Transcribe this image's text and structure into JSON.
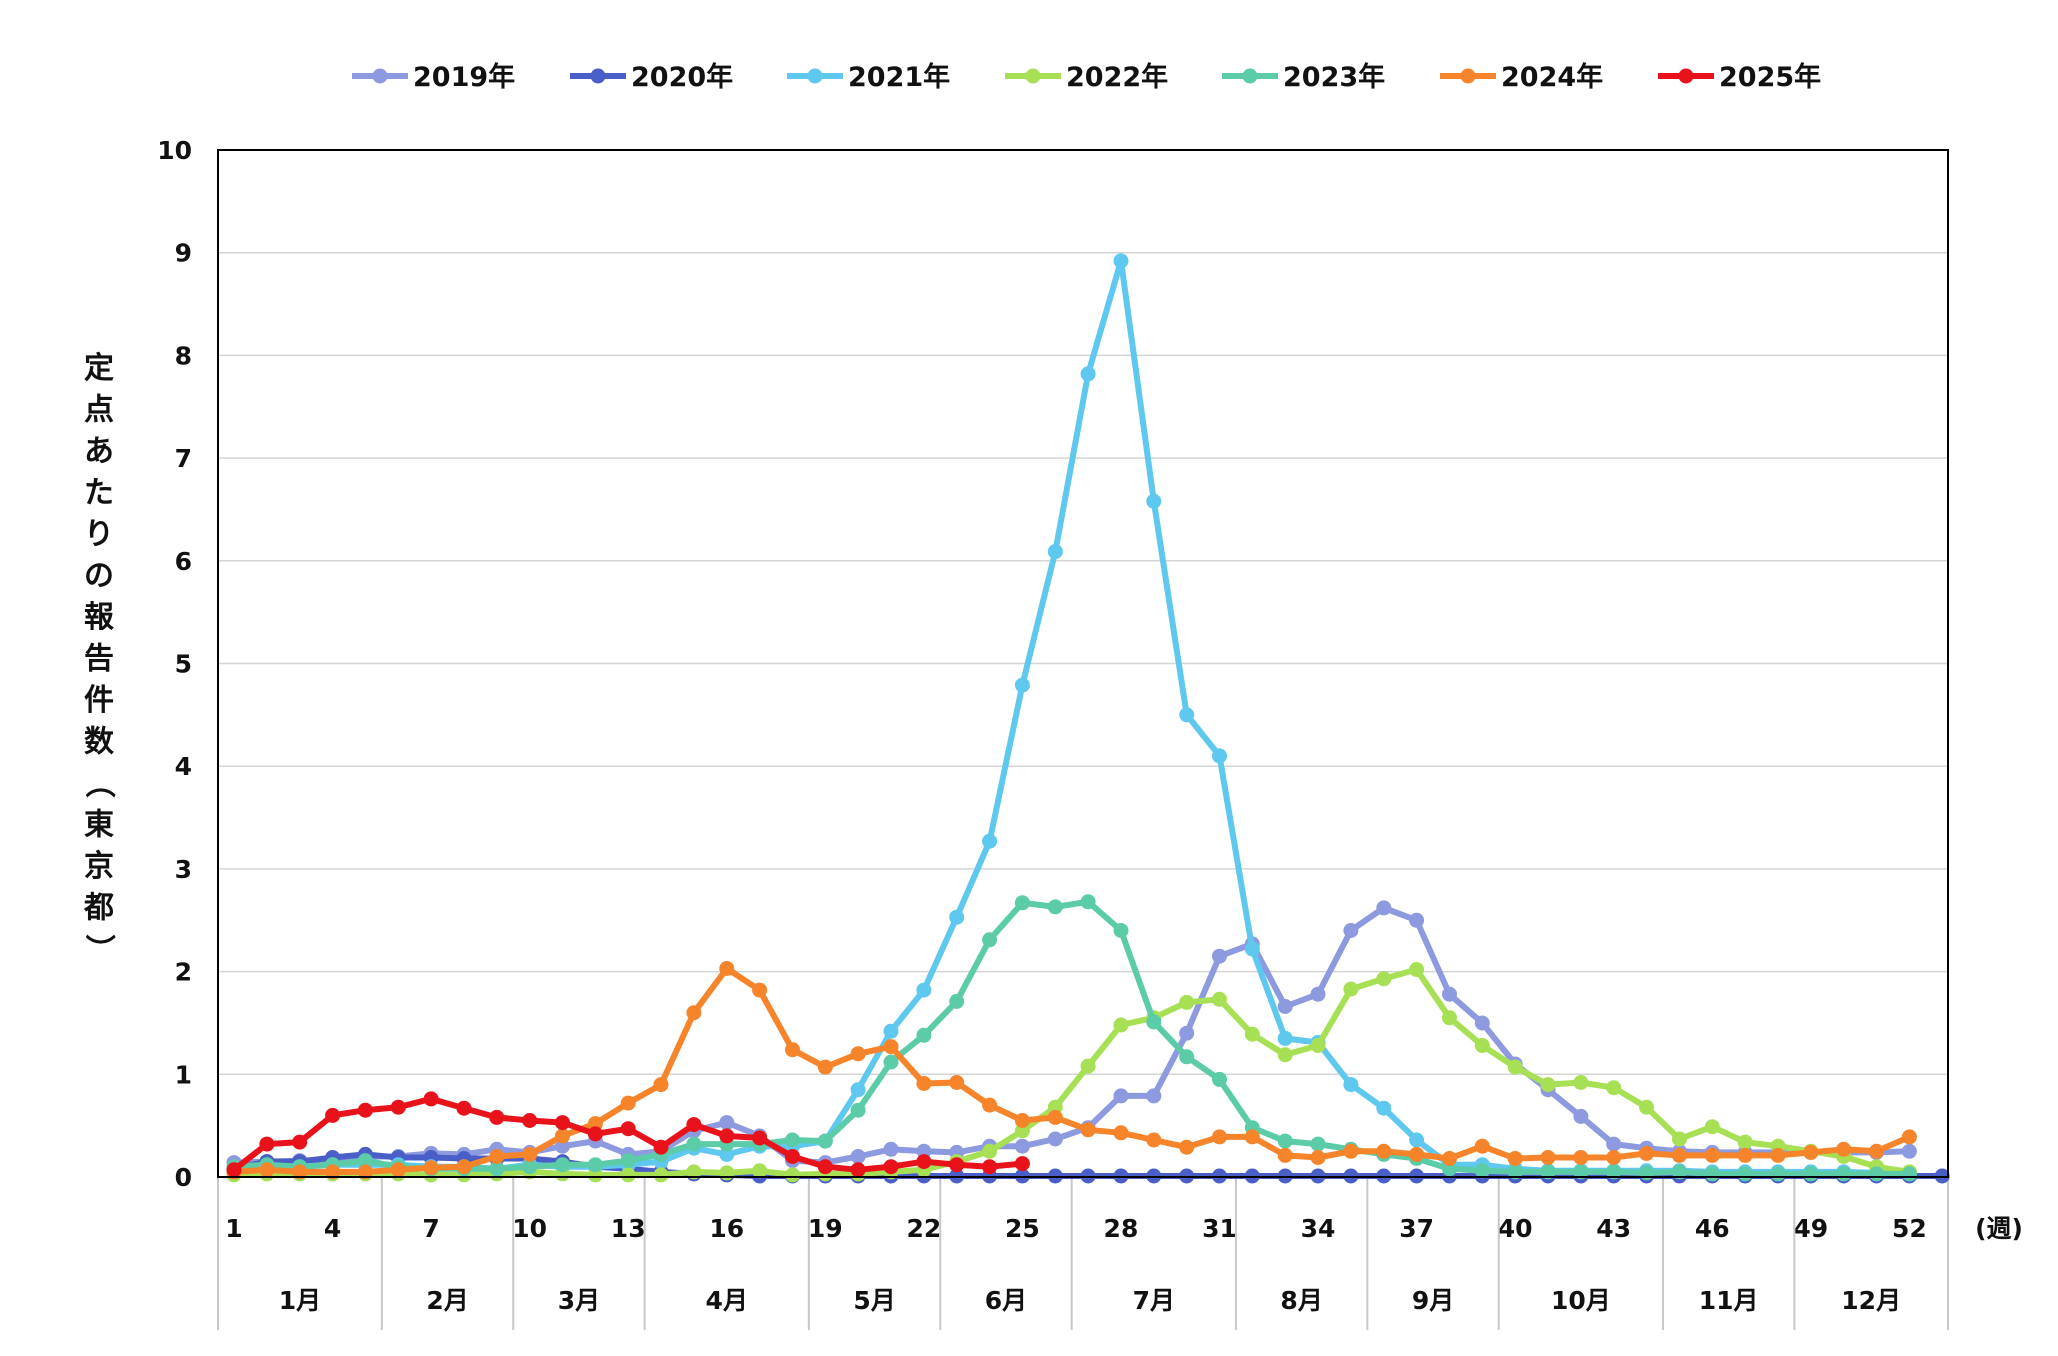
{
  "chart_data": {
    "type": "line",
    "title": "",
    "ylabel_chars": [
      "定",
      "点",
      "あ",
      "た",
      "り",
      "の",
      "報",
      "告",
      "件",
      "数",
      "（",
      "東",
      "京",
      "都",
      "）"
    ],
    "ylabel": "定点あたりの報告件数（東京都）",
    "xunit": "(週)",
    "ylim": [
      0,
      10
    ],
    "yticks": [
      0,
      1,
      2,
      3,
      4,
      5,
      6,
      7,
      8,
      9,
      10
    ],
    "xlim": [
      1,
      53
    ],
    "xticks": [
      1,
      4,
      7,
      10,
      13,
      16,
      19,
      22,
      25,
      28,
      31,
      34,
      37,
      40,
      43,
      46,
      49,
      52
    ],
    "grid": "horizontal",
    "legend": "top",
    "months": [
      {
        "label": "1月",
        "start": 0.5,
        "end": 5.5
      },
      {
        "label": "2月",
        "start": 5.5,
        "end": 9.5
      },
      {
        "label": "3月",
        "start": 9.5,
        "end": 13.5
      },
      {
        "label": "4月",
        "start": 13.5,
        "end": 18.5
      },
      {
        "label": "5月",
        "start": 18.5,
        "end": 22.5
      },
      {
        "label": "6月",
        "start": 22.5,
        "end": 26.5
      },
      {
        "label": "7月",
        "start": 26.5,
        "end": 31.5
      },
      {
        "label": "8月",
        "start": 31.5,
        "end": 35.5
      },
      {
        "label": "9月",
        "start": 35.5,
        "end": 39.5
      },
      {
        "label": "10月",
        "start": 39.5,
        "end": 44.5
      },
      {
        "label": "11月",
        "start": 44.5,
        "end": 48.5
      },
      {
        "label": "12月",
        "start": 48.5,
        "end": 53.5
      }
    ],
    "series": [
      {
        "name": "2019年",
        "color": "#8e9ae0",
        "x_start": 1,
        "values": [
          0.14,
          0.15,
          0.16,
          0.17,
          0.2,
          0.2,
          0.23,
          0.22,
          0.27,
          0.24,
          0.3,
          0.35,
          0.22,
          0.25,
          0.45,
          0.53,
          0.4,
          0.16,
          0.14,
          0.2,
          0.27,
          0.25,
          0.24,
          0.3,
          0.3,
          0.37,
          0.48,
          0.79,
          0.79,
          1.4,
          2.15,
          2.27,
          1.66,
          1.78,
          2.4,
          2.62,
          2.5,
          1.78,
          1.5,
          1.1,
          0.85,
          0.59,
          0.32,
          0.28,
          0.25,
          0.24,
          0.24,
          0.24,
          0.24,
          0.24,
          0.24,
          0.25
        ]
      },
      {
        "name": "2020年",
        "color": "#4a5ec8",
        "x_start": 1,
        "values": [
          0.08,
          0.15,
          0.15,
          0.19,
          0.22,
          0.19,
          0.19,
          0.18,
          0.18,
          0.18,
          0.15,
          0.1,
          0.08,
          0.05,
          0.03,
          0.02,
          0.01,
          0.01,
          0.01,
          0.01,
          0.01,
          0.01,
          0.01,
          0.01,
          0.01,
          0.01,
          0.01,
          0.01,
          0.01,
          0.01,
          0.01,
          0.01,
          0.01,
          0.01,
          0.01,
          0.01,
          0.01,
          0.01,
          0.01,
          0.01,
          0.01,
          0.01,
          0.01,
          0.01,
          0.01,
          0.01,
          0.01,
          0.01,
          0.01,
          0.01,
          0.01,
          0.01,
          0.01
        ]
      },
      {
        "name": "2021年",
        "color": "#5ec8ef",
        "x_start": 1,
        "values": [
          0.05,
          0.08,
          0.1,
          0.12,
          0.12,
          0.12,
          0.1,
          0.1,
          0.08,
          0.12,
          0.1,
          0.1,
          0.12,
          0.15,
          0.28,
          0.22,
          0.3,
          0.3,
          0.35,
          0.85,
          1.42,
          1.82,
          2.53,
          3.27,
          4.79,
          6.09,
          7.82,
          8.92,
          6.58,
          4.5,
          4.1,
          2.22,
          1.35,
          1.31,
          0.9,
          0.67,
          0.36,
          0.12,
          0.12,
          0.08,
          0.06,
          0.06,
          0.06,
          0.06,
          0.06,
          0.05,
          0.05,
          0.05,
          0.05,
          0.05,
          0.04,
          0.03
        ]
      },
      {
        "name": "2022年",
        "color": "#a8e055",
        "x_start": 1,
        "values": [
          0.02,
          0.03,
          0.03,
          0.03,
          0.03,
          0.03,
          0.02,
          0.02,
          0.03,
          0.05,
          0.03,
          0.02,
          0.02,
          0.02,
          0.05,
          0.04,
          0.06,
          0.02,
          0.03,
          0.03,
          0.05,
          0.07,
          0.15,
          0.25,
          0.45,
          0.68,
          1.08,
          1.48,
          1.55,
          1.7,
          1.73,
          1.39,
          1.19,
          1.28,
          1.83,
          1.93,
          2.02,
          1.55,
          1.28,
          1.07,
          0.9,
          0.92,
          0.87,
          0.68,
          0.37,
          0.49,
          0.34,
          0.3,
          0.25,
          0.2,
          0.1,
          0.05
        ]
      },
      {
        "name": "2023年",
        "color": "#5ccca8",
        "x_start": 1,
        "values": [
          0.1,
          0.12,
          0.1,
          0.12,
          0.16,
          0.1,
          0.08,
          0.08,
          0.08,
          0.1,
          0.12,
          0.12,
          0.16,
          0.22,
          0.32,
          0.32,
          0.32,
          0.36,
          0.35,
          0.65,
          1.12,
          1.38,
          1.71,
          2.31,
          2.67,
          2.63,
          2.68,
          2.4,
          1.51,
          1.17,
          0.95,
          0.48,
          0.35,
          0.32,
          0.27,
          0.22,
          0.18,
          0.08,
          0.06,
          0.05,
          0.05,
          0.05,
          0.05,
          0.04,
          0.05,
          0.03,
          0.03,
          0.03,
          0.03,
          0.03,
          0.03,
          0.03
        ]
      },
      {
        "name": "2024年",
        "color": "#f5842a",
        "x_start": 1,
        "values": [
          0.05,
          0.07,
          0.05,
          0.05,
          0.05,
          0.07,
          0.09,
          0.1,
          0.2,
          0.22,
          0.4,
          0.52,
          0.72,
          0.9,
          1.6,
          2.03,
          1.82,
          1.24,
          1.07,
          1.2,
          1.27,
          0.91,
          0.92,
          0.7,
          0.55,
          0.58,
          0.46,
          0.43,
          0.36,
          0.29,
          0.39,
          0.39,
          0.21,
          0.19,
          0.25,
          0.25,
          0.22,
          0.18,
          0.3,
          0.18,
          0.19,
          0.19,
          0.19,
          0.23,
          0.21,
          0.21,
          0.21,
          0.21,
          0.24,
          0.27,
          0.25,
          0.39
        ]
      },
      {
        "name": "2025年",
        "color": "#e8121a",
        "x_start": 1,
        "values": [
          0.07,
          0.32,
          0.34,
          0.6,
          0.65,
          0.68,
          0.76,
          0.67,
          0.58,
          0.55,
          0.53,
          0.42,
          0.47,
          0.29,
          0.51,
          0.4,
          0.38,
          0.2,
          0.1,
          0.07,
          0.1,
          0.15,
          0.12,
          0.1,
          0.13
        ]
      }
    ]
  }
}
